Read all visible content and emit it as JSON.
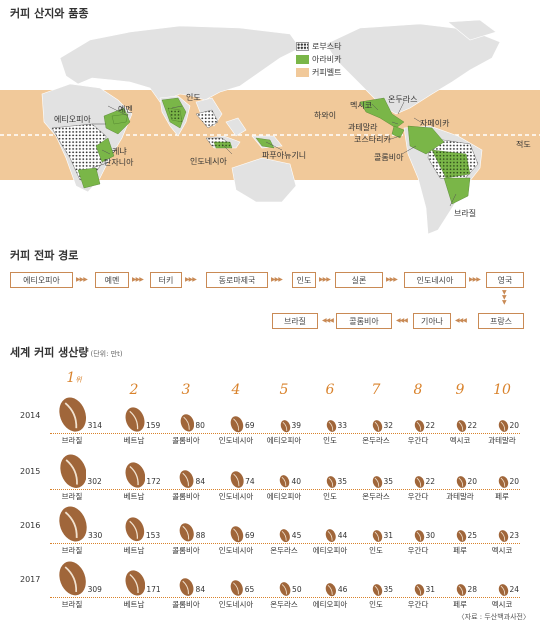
{
  "map_section": {
    "title": "커피 산지와 품종",
    "legend": [
      {
        "label": "로부스타",
        "kind": "robusta"
      },
      {
        "label": "아라비카",
        "kind": "arabica",
        "color": "#7ab648"
      },
      {
        "label": "커피벨트",
        "kind": "belt",
        "color": "#f1c99a"
      }
    ],
    "labels": {
      "yemen": "예멘",
      "ethiopia": "에티오피아",
      "kenya": "케냐",
      "tanzania": "탄자니아",
      "india": "인도",
      "indonesia": "인도네시아",
      "papua": "파푸아뉴기니",
      "hawaii": "하와이",
      "mexico": "멕시코",
      "honduras": "온두라스",
      "guatemala": "과테말라",
      "jamaica": "자메이카",
      "costarica": "코스타리카",
      "colombia": "콜롬비아",
      "brazil": "브라질",
      "equator": "적도"
    }
  },
  "route_section": {
    "title": "커피 전파 경로",
    "row1": [
      "에티오피아",
      "예멘",
      "터키",
      "동로마제국",
      "인도",
      "실론",
      "인도네시아",
      "영국"
    ],
    "row2": [
      "프랑스",
      "기아나",
      "콜롬비아",
      "브라질"
    ]
  },
  "production_section": {
    "title": "세계 커피 생산량",
    "unit": "(단위: 만t)",
    "ranks": [
      "1",
      "2",
      "3",
      "4",
      "5",
      "6",
      "7",
      "8",
      "9",
      "10"
    ],
    "rank_suffix": "위",
    "years": [
      {
        "year": "2014",
        "items": [
          {
            "name": "브라질",
            "value": 314
          },
          {
            "name": "베트남",
            "value": 159
          },
          {
            "name": "콜롬비아",
            "value": 80
          },
          {
            "name": "인도네시아",
            "value": 69
          },
          {
            "name": "에티오피아",
            "value": 39
          },
          {
            "name": "인도",
            "value": 33
          },
          {
            "name": "온두라스",
            "value": 32
          },
          {
            "name": "우간다",
            "value": 22
          },
          {
            "name": "멕시코",
            "value": 22
          },
          {
            "name": "과테말라",
            "value": 20
          }
        ]
      },
      {
        "year": "2015",
        "items": [
          {
            "name": "브라질",
            "value": 302
          },
          {
            "name": "베트남",
            "value": 172
          },
          {
            "name": "콜롬비아",
            "value": 84
          },
          {
            "name": "인도네시아",
            "value": 74
          },
          {
            "name": "에티오피아",
            "value": 40
          },
          {
            "name": "인도",
            "value": 35
          },
          {
            "name": "온두라스",
            "value": 35
          },
          {
            "name": "우간다",
            "value": 22
          },
          {
            "name": "과테말라",
            "value": 20
          },
          {
            "name": "페루",
            "value": 20
          }
        ]
      },
      {
        "year": "2016",
        "items": [
          {
            "name": "브라질",
            "value": 330
          },
          {
            "name": "베트남",
            "value": 153
          },
          {
            "name": "콜롬비아",
            "value": 88
          },
          {
            "name": "인도네시아",
            "value": 69
          },
          {
            "name": "온두라스",
            "value": 45
          },
          {
            "name": "에티오피아",
            "value": 44
          },
          {
            "name": "인도",
            "value": 31
          },
          {
            "name": "우간다",
            "value": 30
          },
          {
            "name": "페루",
            "value": 25
          },
          {
            "name": "멕시코",
            "value": 23
          }
        ]
      },
      {
        "year": "2017",
        "items": [
          {
            "name": "브라질",
            "value": 309
          },
          {
            "name": "베트남",
            "value": 171
          },
          {
            "name": "콜롬비아",
            "value": 84
          },
          {
            "name": "인도네시아",
            "value": 65
          },
          {
            "name": "온두라스",
            "value": 50
          },
          {
            "name": "에티오피아",
            "value": 46
          },
          {
            "name": "인도",
            "value": 35
          },
          {
            "name": "우간다",
            "value": 31
          },
          {
            "name": "페루",
            "value": 28
          },
          {
            "name": "멕시코",
            "value": 24
          }
        ]
      }
    ],
    "bean_color": "#a0663a",
    "source": "〈자료 : 두산백과사전〉"
  }
}
